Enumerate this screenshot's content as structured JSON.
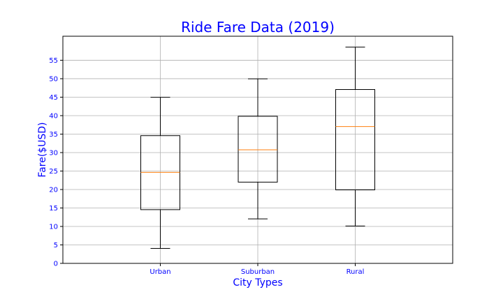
{
  "chart_data": {
    "type": "box",
    "title": "Ride Fare Data (2019)",
    "xlabel": "City Types",
    "ylabel": "Fare($USD)",
    "categories": [
      "Urban",
      "Suburban",
      "Rural"
    ],
    "boxes": [
      {
        "category": "Urban",
        "whisker_low": 4.05,
        "q1": 14.55,
        "median": 24.64,
        "q3": 34.58,
        "whisker_high": 44.97
      },
      {
        "category": "Suburban",
        "whisker_low": 12.05,
        "q1": 22.0,
        "median": 30.75,
        "q3": 39.83,
        "whisker_high": 49.96
      },
      {
        "category": "Rural",
        "whisker_low": 10.11,
        "q1": 19.9,
        "median": 37.05,
        "q3": 47.07,
        "whisker_high": 58.55
      }
    ],
    "ylim": [
      0,
      61.5
    ],
    "yticks": [
      0,
      5,
      10,
      15,
      20,
      25,
      30,
      35,
      40,
      45,
      50,
      55
    ],
    "grid": true,
    "colors": {
      "text": "#0000ff",
      "box": "#000000",
      "median": "#ff7f0e",
      "grid": "#b0b0b0"
    }
  }
}
